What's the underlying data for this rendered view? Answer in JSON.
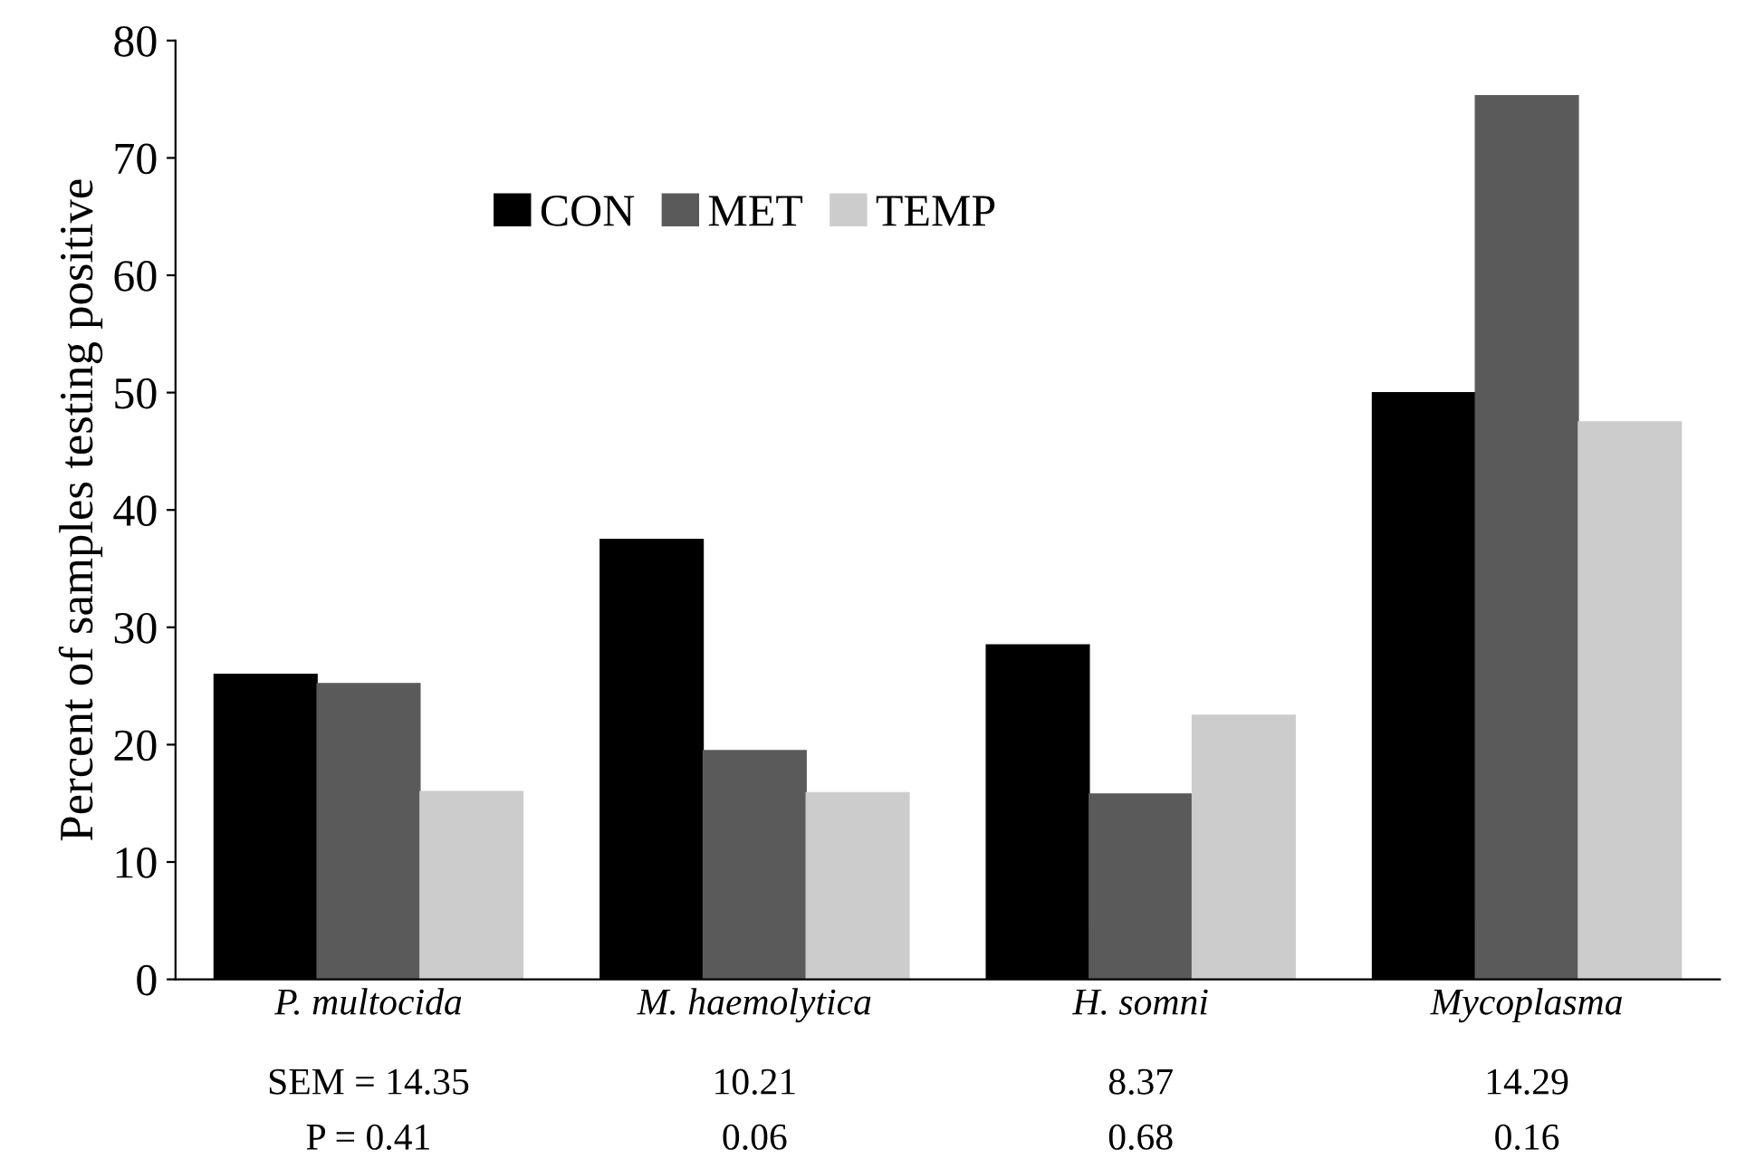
{
  "chart_data": {
    "type": "bar",
    "ylabel": "Percent of samples testing positive",
    "categories": [
      "P. multocida",
      "M. haemolytica",
      "H. somni",
      "Mycoplasma"
    ],
    "series": [
      {
        "name": "CON",
        "color": "#000000",
        "values": [
          26,
          37.5,
          28.5,
          50
        ]
      },
      {
        "name": "MET",
        "color": "#5a5a5a",
        "values": [
          25.2,
          19.5,
          15.8,
          75.3
        ]
      },
      {
        "name": "TEMP",
        "color": "#cccccc",
        "values": [
          16,
          15.9,
          22.5,
          47.5
        ]
      }
    ],
    "ylim": [
      0,
      80
    ],
    "yticks": [
      0,
      10,
      20,
      30,
      40,
      50,
      60,
      70,
      80
    ],
    "legend": "top left",
    "annotations": [
      "SEM = 14.35",
      "10.21",
      "8.37",
      "14.29",
      "P = 0.41",
      "0.06",
      "0.68",
      "0.16"
    ]
  }
}
